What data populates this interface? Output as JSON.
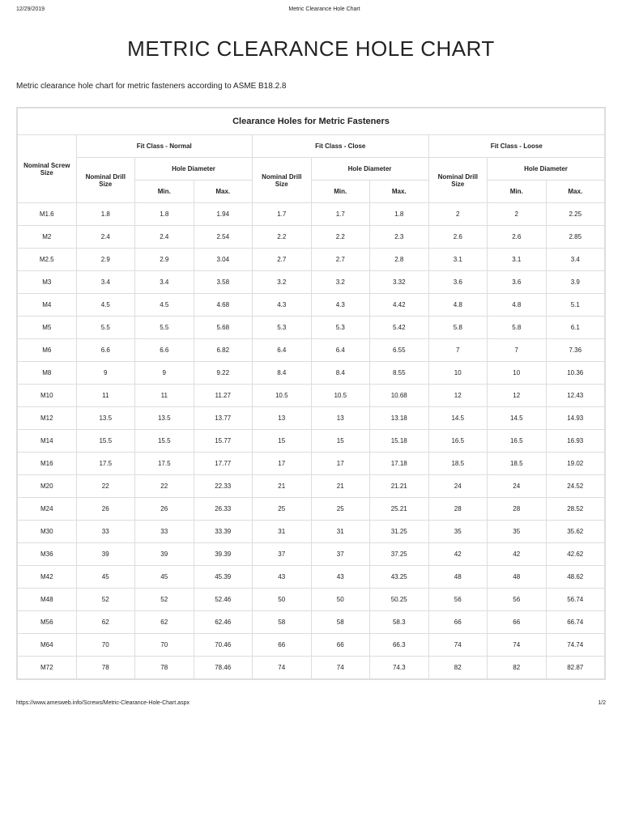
{
  "header": {
    "date": "12/29/2019",
    "doc_title": "Metric Clearance Hole Chart"
  },
  "title": "METRIC CLEARANCE HOLE CHART",
  "subtitle": "Metric clearance hole chart for metric fasteners according to ASME B18.2.8",
  "table": {
    "caption": "Clearance Holes for Metric Fasteners",
    "col_screw": "Nominal Screw Size",
    "fit_normal": "Fit Class - Normal",
    "fit_close": "Fit Class - Close",
    "fit_loose": "Fit Class - Loose",
    "drill_label": "Nominal Drill Size",
    "hole_label": "Hole Diameter",
    "min_label": "Min.",
    "max_label": "Max.",
    "rows": [
      {
        "s": "M1.6",
        "nd": "1.8",
        "nmin": "1.8",
        "nmax": "1.94",
        "cd": "1.7",
        "cmin": "1.7",
        "cmax": "1.8",
        "ld": "2",
        "lmin": "2",
        "lmax": "2.25"
      },
      {
        "s": "M2",
        "nd": "2.4",
        "nmin": "2.4",
        "nmax": "2.54",
        "cd": "2.2",
        "cmin": "2.2",
        "cmax": "2.3",
        "ld": "2.6",
        "lmin": "2.6",
        "lmax": "2.85"
      },
      {
        "s": "M2.5",
        "nd": "2.9",
        "nmin": "2.9",
        "nmax": "3.04",
        "cd": "2.7",
        "cmin": "2.7",
        "cmax": "2.8",
        "ld": "3.1",
        "lmin": "3.1",
        "lmax": "3.4"
      },
      {
        "s": "M3",
        "nd": "3.4",
        "nmin": "3.4",
        "nmax": "3.58",
        "cd": "3.2",
        "cmin": "3.2",
        "cmax": "3.32",
        "ld": "3.6",
        "lmin": "3.6",
        "lmax": "3.9"
      },
      {
        "s": "M4",
        "nd": "4.5",
        "nmin": "4.5",
        "nmax": "4.68",
        "cd": "4.3",
        "cmin": "4.3",
        "cmax": "4.42",
        "ld": "4.8",
        "lmin": "4.8",
        "lmax": "5.1"
      },
      {
        "s": "M5",
        "nd": "5.5",
        "nmin": "5.5",
        "nmax": "5.68",
        "cd": "5.3",
        "cmin": "5.3",
        "cmax": "5.42",
        "ld": "5.8",
        "lmin": "5.8",
        "lmax": "6.1"
      },
      {
        "s": "M6",
        "nd": "6.6",
        "nmin": "6.6",
        "nmax": "6.82",
        "cd": "6.4",
        "cmin": "6.4",
        "cmax": "6.55",
        "ld": "7",
        "lmin": "7",
        "lmax": "7.36"
      },
      {
        "s": "M8",
        "nd": "9",
        "nmin": "9",
        "nmax": "9.22",
        "cd": "8.4",
        "cmin": "8.4",
        "cmax": "8.55",
        "ld": "10",
        "lmin": "10",
        "lmax": "10.36"
      },
      {
        "s": "M10",
        "nd": "11",
        "nmin": "11",
        "nmax": "11.27",
        "cd": "10.5",
        "cmin": "10.5",
        "cmax": "10.68",
        "ld": "12",
        "lmin": "12",
        "lmax": "12.43"
      },
      {
        "s": "M12",
        "nd": "13.5",
        "nmin": "13.5",
        "nmax": "13.77",
        "cd": "13",
        "cmin": "13",
        "cmax": "13.18",
        "ld": "14.5",
        "lmin": "14.5",
        "lmax": "14.93"
      },
      {
        "s": "M14",
        "nd": "15.5",
        "nmin": "15.5",
        "nmax": "15.77",
        "cd": "15",
        "cmin": "15",
        "cmax": "15.18",
        "ld": "16.5",
        "lmin": "16.5",
        "lmax": "16.93"
      },
      {
        "s": "M16",
        "nd": "17.5",
        "nmin": "17.5",
        "nmax": "17.77",
        "cd": "17",
        "cmin": "17",
        "cmax": "17.18",
        "ld": "18.5",
        "lmin": "18.5",
        "lmax": "19.02"
      },
      {
        "s": "M20",
        "nd": "22",
        "nmin": "22",
        "nmax": "22.33",
        "cd": "21",
        "cmin": "21",
        "cmax": "21.21",
        "ld": "24",
        "lmin": "24",
        "lmax": "24.52"
      },
      {
        "s": "M24",
        "nd": "26",
        "nmin": "26",
        "nmax": "26.33",
        "cd": "25",
        "cmin": "25",
        "cmax": "25.21",
        "ld": "28",
        "lmin": "28",
        "lmax": "28.52"
      },
      {
        "s": "M30",
        "nd": "33",
        "nmin": "33",
        "nmax": "33.39",
        "cd": "31",
        "cmin": "31",
        "cmax": "31.25",
        "ld": "35",
        "lmin": "35",
        "lmax": "35.62"
      },
      {
        "s": "M36",
        "nd": "39",
        "nmin": "39",
        "nmax": "39.39",
        "cd": "37",
        "cmin": "37",
        "cmax": "37.25",
        "ld": "42",
        "lmin": "42",
        "lmax": "42.62"
      },
      {
        "s": "M42",
        "nd": "45",
        "nmin": "45",
        "nmax": "45.39",
        "cd": "43",
        "cmin": "43",
        "cmax": "43.25",
        "ld": "48",
        "lmin": "48",
        "lmax": "48.62"
      },
      {
        "s": "M48",
        "nd": "52",
        "nmin": "52",
        "nmax": "52.46",
        "cd": "50",
        "cmin": "50",
        "cmax": "50.25",
        "ld": "56",
        "lmin": "56",
        "lmax": "56.74"
      },
      {
        "s": "M56",
        "nd": "62",
        "nmin": "62",
        "nmax": "62.46",
        "cd": "58",
        "cmin": "58",
        "cmax": "58.3",
        "ld": "66",
        "lmin": "66",
        "lmax": "66.74"
      },
      {
        "s": "M64",
        "nd": "70",
        "nmin": "70",
        "nmax": "70.46",
        "cd": "66",
        "cmin": "66",
        "cmax": "66.3",
        "ld": "74",
        "lmin": "74",
        "lmax": "74.74"
      },
      {
        "s": "M72",
        "nd": "78",
        "nmin": "78",
        "nmax": "78.46",
        "cd": "74",
        "cmin": "74",
        "cmax": "74.3",
        "ld": "82",
        "lmin": "82",
        "lmax": "82.87"
      }
    ]
  },
  "footer": {
    "url": "https://www.amesweb.info/Screws/Metric-Clearance-Hole-Chart.aspx",
    "page": "1/2"
  }
}
